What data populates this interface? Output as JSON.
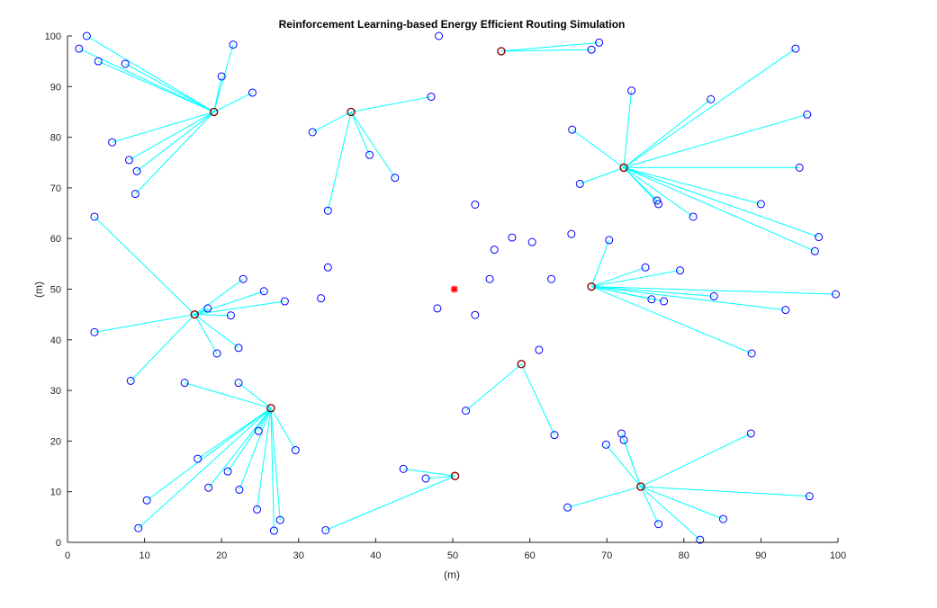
{
  "chart_data": {
    "type": "scatter",
    "title": "Reinforcement Learning-based Energy Efficient Routing Simulation",
    "xlabel": "(m)",
    "ylabel": "(m)",
    "xlim": [
      0,
      100
    ],
    "ylim": [
      0,
      100
    ],
    "xticks": [
      0,
      10,
      20,
      30,
      40,
      50,
      60,
      70,
      80,
      90,
      100
    ],
    "yticks": [
      0,
      10,
      20,
      30,
      40,
      50,
      60,
      70,
      80,
      90,
      100
    ],
    "grid": false,
    "colors": {
      "node": "#0000FF",
      "cluster_head": "#8B0000",
      "link": "#00FFFF",
      "base_station": "#FF0000"
    },
    "base_station": {
      "x": 50.2,
      "y": 50.0,
      "marker": "star"
    },
    "clusters": [
      {
        "head": [
          19.0,
          85.0
        ],
        "members": [
          [
            2.5,
            100.0
          ],
          [
            1.5,
            97.5
          ],
          [
            4.0,
            95.0
          ],
          [
            7.5,
            94.5
          ],
          [
            21.5,
            98.3
          ],
          [
            20.0,
            92.0
          ],
          [
            24.0,
            88.8
          ],
          [
            5.8,
            79.0
          ],
          [
            8.0,
            75.5
          ],
          [
            9.0,
            73.3
          ],
          [
            8.8,
            68.8
          ]
        ]
      },
      {
        "head": [
          36.8,
          85.0
        ],
        "members": [
          [
            47.2,
            88.0
          ],
          [
            31.8,
            81.0
          ],
          [
            39.2,
            76.5
          ],
          [
            42.5,
            72.0
          ],
          [
            33.8,
            65.5
          ]
        ]
      },
      {
        "head": [
          56.3,
          97.0
        ],
        "members": [
          [
            69.0,
            98.7
          ],
          [
            68.0,
            97.3
          ]
        ]
      },
      {
        "head": [
          72.2,
          74.0
        ],
        "members": [
          [
            94.5,
            97.5
          ],
          [
            73.2,
            89.2
          ],
          [
            83.5,
            87.5
          ],
          [
            96.0,
            84.5
          ],
          [
            65.5,
            81.5
          ],
          [
            95.0,
            74.0
          ],
          [
            66.5,
            70.8
          ],
          [
            76.5,
            67.5
          ],
          [
            76.7,
            66.8
          ],
          [
            81.2,
            64.3
          ],
          [
            90.0,
            66.8
          ],
          [
            97.5,
            60.3
          ],
          [
            97.0,
            57.5
          ]
        ]
      },
      {
        "head": [
          16.5,
          45.0
        ],
        "members": [
          [
            3.5,
            64.3
          ],
          [
            22.8,
            52.0
          ],
          [
            25.5,
            49.6
          ],
          [
            28.2,
            47.6
          ],
          [
            18.2,
            46.2
          ],
          [
            21.2,
            44.8
          ],
          [
            3.5,
            41.5
          ],
          [
            22.2,
            38.4
          ],
          [
            19.4,
            37.3
          ],
          [
            8.2,
            31.9
          ]
        ]
      },
      {
        "head": [
          68.0,
          50.5
        ],
        "members": [
          [
            70.3,
            59.7
          ],
          [
            75.0,
            54.3
          ],
          [
            79.5,
            53.7
          ],
          [
            99.7,
            49.0
          ],
          [
            83.9,
            48.6
          ],
          [
            75.8,
            48.0
          ],
          [
            77.4,
            47.6
          ],
          [
            93.2,
            45.9
          ],
          [
            88.8,
            37.3
          ]
        ]
      },
      {
        "head": [
          26.4,
          26.5
        ],
        "members": [
          [
            15.2,
            31.5
          ],
          [
            22.2,
            31.5
          ],
          [
            24.8,
            22.0
          ],
          [
            29.6,
            18.2
          ],
          [
            16.9,
            16.5
          ],
          [
            20.8,
            14.0
          ],
          [
            18.3,
            10.8
          ],
          [
            22.3,
            10.4
          ],
          [
            10.3,
            8.3
          ],
          [
            24.6,
            6.5
          ],
          [
            27.6,
            4.4
          ],
          [
            26.8,
            2.3
          ],
          [
            9.2,
            2.8
          ]
        ]
      },
      {
        "head": [
          58.9,
          35.2
        ],
        "members": [
          [
            51.7,
            26.0
          ],
          [
            63.2,
            21.2
          ]
        ]
      },
      {
        "head": [
          50.3,
          13.1
        ],
        "members": [
          [
            43.6,
            14.5
          ],
          [
            46.5,
            12.6
          ],
          [
            33.5,
            2.4
          ]
        ]
      },
      {
        "head": [
          74.4,
          11.0
        ],
        "members": [
          [
            71.9,
            21.5
          ],
          [
            72.2,
            20.2
          ],
          [
            69.9,
            19.3
          ],
          [
            88.7,
            21.5
          ],
          [
            96.3,
            9.1
          ],
          [
            64.9,
            6.9
          ],
          [
            85.1,
            4.6
          ],
          [
            76.7,
            3.6
          ],
          [
            82.1,
            0.5
          ]
        ]
      }
    ],
    "unclustered_nodes": [
      [
        48.2,
        100.0
      ],
      [
        52.9,
        66.7
      ],
      [
        57.7,
        60.2
      ],
      [
        55.4,
        57.8
      ],
      [
        60.3,
        59.3
      ],
      [
        65.4,
        60.9
      ],
      [
        33.8,
        54.3
      ],
      [
        54.8,
        52.0
      ],
      [
        62.8,
        52.0
      ],
      [
        32.9,
        48.2
      ],
      [
        48.0,
        46.2
      ],
      [
        52.9,
        44.9
      ],
      [
        61.2,
        38.0
      ]
    ]
  }
}
